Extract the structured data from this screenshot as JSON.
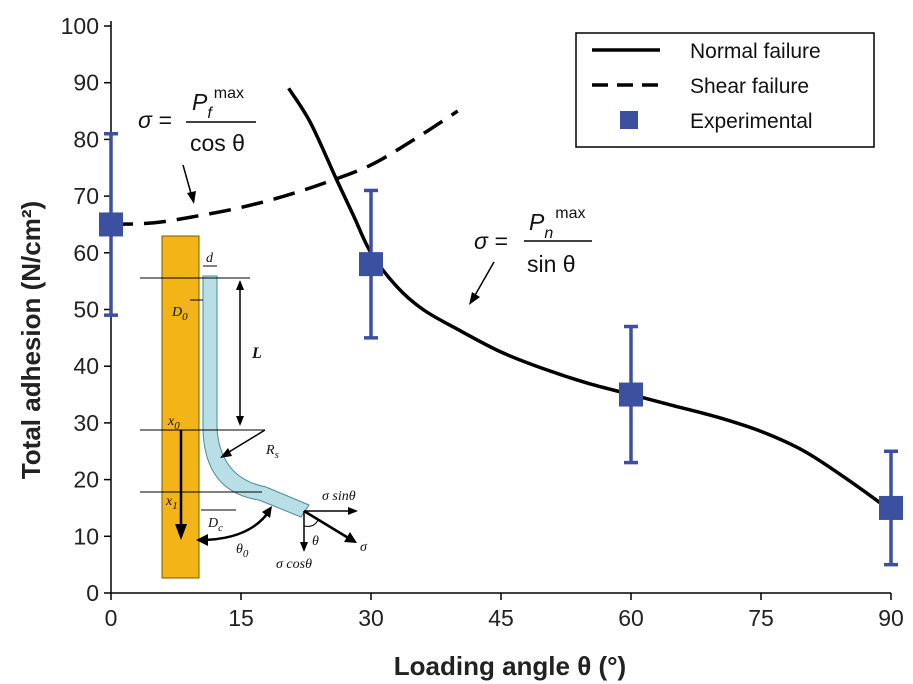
{
  "chart_data": {
    "type": "line",
    "xlabel": "Loading angle θ (°)",
    "ylabel": "Total adhesion (N/cm²)",
    "xlim": [
      0,
      90
    ],
    "ylim": [
      0,
      100
    ],
    "xticks": [
      "0",
      "15",
      "30",
      "45",
      "60",
      "75",
      "90"
    ],
    "yticks": [
      "0",
      "10",
      "20",
      "30",
      "40",
      "50",
      "60",
      "70",
      "80",
      "90",
      "100"
    ],
    "grid": false,
    "legend_position": "top-right",
    "legend": [
      "Normal failure",
      "Shear failure",
      "Experimental"
    ],
    "series": [
      {
        "name": "Normal failure",
        "style": "solid",
        "color": "#000000",
        "x": [
          20.5,
          23,
          26,
          28,
          30,
          33,
          36,
          40,
          45,
          50,
          55,
          60,
          65,
          70,
          75,
          80,
          85,
          90
        ],
        "y": [
          89,
          83,
          73,
          66.5,
          60,
          54,
          50,
          46.5,
          42.5,
          39.5,
          37,
          35,
          33,
          31,
          28.5,
          25,
          20,
          14.5
        ]
      },
      {
        "name": "Shear failure",
        "style": "dashed",
        "color": "#000000",
        "x": [
          0,
          5,
          10,
          15,
          20,
          25,
          30,
          35,
          40
        ],
        "y": [
          65,
          65.3,
          66.5,
          68,
          70,
          72.5,
          75.5,
          80,
          85
        ]
      },
      {
        "name": "Experimental",
        "style": "marker",
        "color": "#3c50a0",
        "x": [
          0,
          30,
          60,
          90
        ],
        "y": [
          65,
          58,
          35,
          15
        ],
        "error_low": [
          49,
          45,
          23,
          5
        ],
        "error_high": [
          81,
          71,
          47,
          25
        ]
      }
    ],
    "annotations": {
      "shear_eq": {
        "lhs": "σ =",
        "num": "P",
        "sub": "f",
        "sup": "max",
        "den": "cos θ"
      },
      "normal_eq": {
        "lhs": "σ =",
        "num": "P",
        "sub": "n",
        "sup": "max",
        "den": "sin θ"
      }
    },
    "inset_labels": {
      "d": "d",
      "D0": "D",
      "D0_sub": "0",
      "L": "L",
      "x0": "x",
      "x0_sub": "0",
      "x1": "x",
      "x1_sub": "1",
      "Rs": "R",
      "Rs_sub": "s",
      "Dc": "D",
      "Dc_sub": "c",
      "theta0": "θ",
      "theta0_sub": "0",
      "theta": "θ",
      "sigma": "σ",
      "sigma_sin": "σ sinθ",
      "sigma_cos": "σ cosθ"
    },
    "colors": {
      "experimental": "#3c50a0",
      "pillar": "#f2b417",
      "fiber": "#b9dfe6"
    }
  }
}
